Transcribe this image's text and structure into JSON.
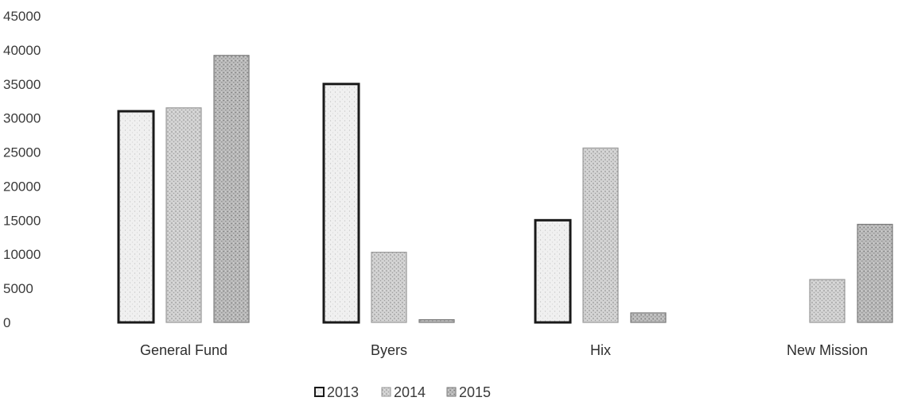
{
  "chart_data": {
    "type": "bar",
    "categories": [
      "General Fund",
      "Byers",
      "Hix",
      "New Mission"
    ],
    "series": [
      {
        "name": "2013",
        "values": [
          31000,
          35000,
          15000,
          0
        ],
        "color": "#ededed",
        "stroke": "#1a1a1a"
      },
      {
        "name": "2014",
        "values": [
          31500,
          10300,
          25600,
          6300
        ],
        "color": "#c9c9c9",
        "stroke": "#9a9a9a"
      },
      {
        "name": "2015",
        "values": [
          39200,
          400,
          1400,
          14400
        ],
        "color": "#b3b3b3",
        "stroke": "#7a7a7a"
      }
    ],
    "yticks": [
      "0",
      "5000",
      "10000",
      "15000",
      "20000",
      "25000",
      "30000",
      "35000",
      "40000",
      "45000"
    ],
    "ylim": [
      0,
      45000
    ],
    "grid": false,
    "legend_position": "bottom"
  }
}
